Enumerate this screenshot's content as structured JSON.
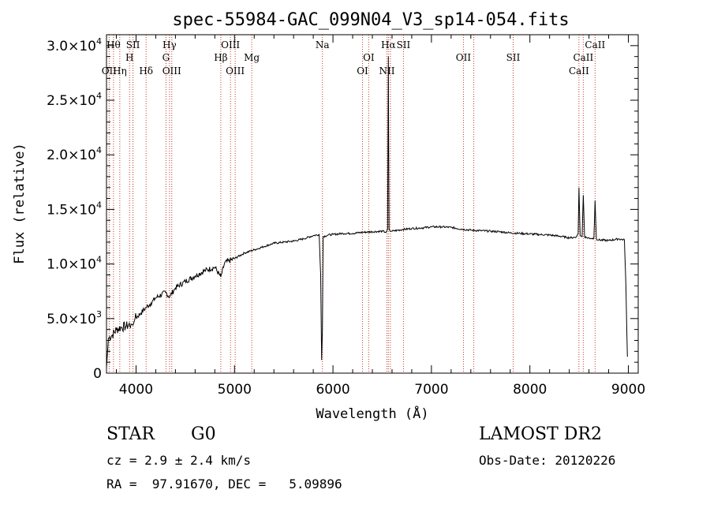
{
  "chart_data": {
    "type": "line",
    "title": "spec-55984-GAC_099N04_V3_sp14-054.fits",
    "xlabel": "Wavelength (Å)",
    "ylabel": "Flux (relative)",
    "xlim": [
      3700,
      9100
    ],
    "ylim": [
      0,
      31000
    ],
    "xticks": [
      4000,
      5000,
      6000,
      7000,
      8000,
      9000
    ],
    "xtick_labels": [
      "4000",
      "5000",
      "6000",
      "7000",
      "8000",
      "9000"
    ],
    "yticks": [
      0,
      5000,
      10000,
      15000,
      20000,
      25000,
      30000
    ],
    "ytick_labels": [
      {
        "mant": "0",
        "exp": ""
      },
      {
        "mant": "5.0×10",
        "exp": "3"
      },
      {
        "mant": "1.0×10",
        "exp": "4"
      },
      {
        "mant": "1.5×10",
        "exp": "4"
      },
      {
        "mant": "2.0×10",
        "exp": "4"
      },
      {
        "mant": "2.5×10",
        "exp": "4"
      },
      {
        "mant": "3.0×10",
        "exp": "4"
      }
    ],
    "series": [
      {
        "x": [
          3700,
          3720,
          3760,
          3800,
          3850,
          3900,
          3950,
          3970,
          3990,
          4050,
          4100,
          4150,
          4200,
          4300,
          4340,
          4400,
          4500,
          4600,
          4700,
          4800,
          4861,
          4900,
          5000,
          5100,
          5200,
          5300,
          5400,
          5500,
          5600,
          5700,
          5800,
          5860,
          5875,
          5885,
          5893,
          5900,
          5950,
          6000,
          6100,
          6200,
          6300,
          6400,
          6500,
          6540,
          6555,
          6563,
          6565,
          6570,
          6580,
          6600,
          6700,
          6800,
          6900,
          7000,
          7100,
          7200,
          7300,
          7400,
          7500,
          7600,
          7700,
          7800,
          7900,
          8000,
          8100,
          8200,
          8300,
          8400,
          8470,
          8490,
          8498,
          8510,
          8530,
          8542,
          8555,
          8580,
          8620,
          8650,
          8662,
          8675,
          8700,
          8800,
          8900,
          8960,
          8975,
          8990
        ],
        "y": [
          500,
          3200,
          3500,
          4000,
          4200,
          4300,
          4500,
          4400,
          5000,
          5500,
          6000,
          6400,
          6900,
          7400,
          7000,
          7800,
          8400,
          8900,
          9400,
          9700,
          8800,
          10100,
          10500,
          11000,
          11300,
          11600,
          11900,
          12000,
          12100,
          12300,
          12600,
          12700,
          9000,
          1200,
          4000,
          12500,
          12650,
          12700,
          12800,
          12800,
          12900,
          12950,
          13000,
          12900,
          13200,
          29000,
          22000,
          13200,
          13000,
          13000,
          13150,
          13250,
          13300,
          13400,
          13400,
          13350,
          13200,
          13100,
          13050,
          13000,
          12950,
          12850,
          12800,
          12750,
          12700,
          12650,
          12550,
          12400,
          12450,
          12800,
          17000,
          12600,
          12500,
          16300,
          12500,
          12400,
          12350,
          12350,
          15800,
          12300,
          12200,
          12150,
          12300,
          12200,
          8000,
          1500
        ]
      }
    ],
    "lines": [
      {
        "w": 3771,
        "label": "Hθ",
        "row": 0
      },
      {
        "w": 3727,
        "label": "OII",
        "row": 3
      },
      {
        "w": 3835,
        "label": "Hη",
        "row": 3
      },
      {
        "w": 3934,
        "label": "H",
        "row": 1
      },
      {
        "w": 3969,
        "label": "SII",
        "row": 0
      },
      {
        "w": 4102,
        "label": "Hδ",
        "row": 3
      },
      {
        "w": 4304,
        "label": "G",
        "row": 1
      },
      {
        "w": 4340,
        "label": "Hγ",
        "row": 0
      },
      {
        "w": 4363,
        "label": "OIII",
        "row": 3
      },
      {
        "w": 4861,
        "label": "Hβ",
        "row": 1
      },
      {
        "w": 4959,
        "label": "OIII",
        "row": 0
      },
      {
        "w": 5007,
        "label": "OIII",
        "row": 3
      },
      {
        "w": 5175,
        "label": "Mg",
        "row": 1
      },
      {
        "w": 5893,
        "label": "Na",
        "row": 0
      },
      {
        "w": 6300,
        "label": "OI",
        "row": 3
      },
      {
        "w": 6363,
        "label": "OI",
        "row": 1
      },
      {
        "w": 6548,
        "label": "NII",
        "row": 3
      },
      {
        "w": 6563,
        "label": "Hα",
        "row": 0
      },
      {
        "w": 6583,
        "label": "",
        "row": -1
      },
      {
        "w": 6716,
        "label": "SII",
        "row": 0
      },
      {
        "w": 7325,
        "label": "OII",
        "row": 1
      },
      {
        "w": 7430,
        "label": "",
        "row": -1
      },
      {
        "w": 7830,
        "label": "SII",
        "row": 1
      },
      {
        "w": 8498,
        "label": "CaII",
        "row": 3
      },
      {
        "w": 8542,
        "label": "CaII",
        "row": 2
      },
      {
        "w": 8662,
        "label": "CaII",
        "row": 0
      }
    ]
  },
  "info": {
    "class_label": "STAR",
    "subclass": "G0",
    "survey": "LAMOST DR2",
    "cz": "cz = 2.9 ± 2.4 km/s",
    "obs_date": "Obs-Date: 20120226",
    "coords": "RA =  97.91670, DEC =   5.09896"
  }
}
